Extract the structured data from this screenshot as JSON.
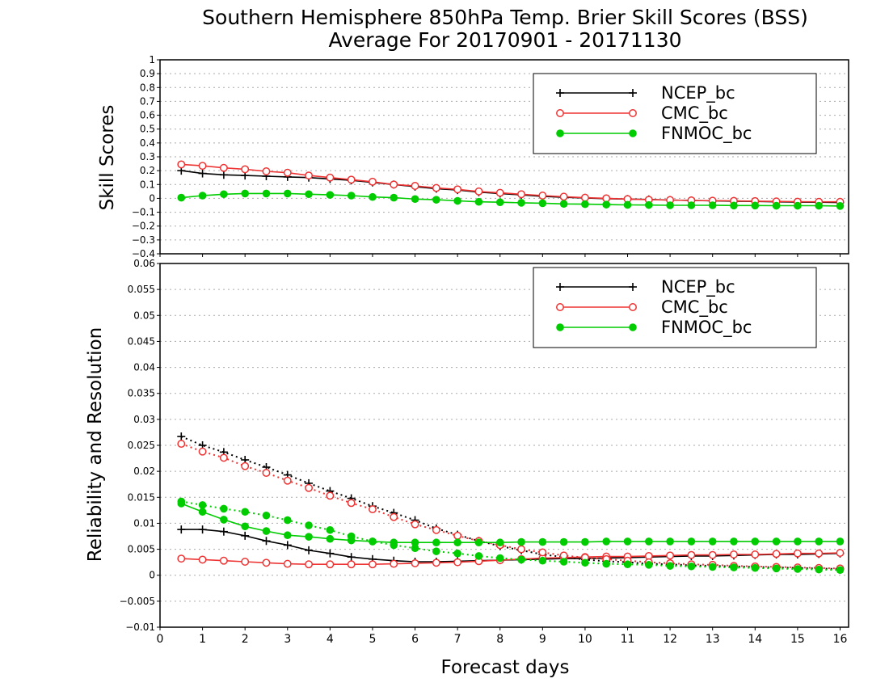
{
  "titles": {
    "line1": "Southern Hemisphere 850hPa Temp. Brier Skill Scores (BSS)",
    "line2": "Average For 20170901 - 20171130"
  },
  "xlabel": "Forecast days",
  "colors": {
    "NCEP_bc": "#000000",
    "CMC_bc": "#ee3333",
    "FNMOC_bc": "#00cc00",
    "grid": "#aaaaaa"
  },
  "chart_data": [
    {
      "type": "line",
      "panel": "top",
      "ylabel": "Skill Scores",
      "xlim": [
        0,
        16.2
      ],
      "ylim": [
        -0.4,
        1
      ],
      "xticks": [
        0,
        1,
        2,
        3,
        4,
        5,
        6,
        7,
        8,
        9,
        10,
        11,
        12,
        13,
        14,
        15,
        16
      ],
      "yticks": [
        1,
        0.9,
        0.8,
        0.7,
        0.6,
        0.5,
        0.4,
        0.3,
        0.2,
        0.1,
        0,
        -0.1,
        -0.2,
        -0.3,
        -0.4
      ],
      "grid": true,
      "legend": {
        "position": "top-right",
        "entries": [
          "NCEP_bc",
          "CMC_bc",
          "FNMOC_bc"
        ]
      },
      "x": [
        0.5,
        1,
        1.5,
        2,
        2.5,
        3,
        3.5,
        4,
        4.5,
        5,
        5.5,
        6,
        6.5,
        7,
        7.5,
        8,
        8.5,
        9,
        9.5,
        10,
        10.5,
        11,
        11.5,
        12,
        12.5,
        13,
        13.5,
        14,
        14.5,
        15,
        15.5,
        16
      ],
      "series": [
        {
          "name": "NCEP_bc",
          "style": "solid",
          "marker": "plus",
          "values": [
            0.2,
            0.18,
            0.17,
            0.165,
            0.16,
            0.155,
            0.15,
            0.14,
            0.13,
            0.115,
            0.1,
            0.085,
            0.07,
            0.06,
            0.045,
            0.035,
            0.025,
            0.015,
            0.008,
            0.003,
            -0.002,
            -0.005,
            -0.008,
            -0.012,
            -0.015,
            -0.018,
            -0.02,
            -0.022,
            -0.025,
            -0.027,
            -0.028,
            -0.03
          ]
        },
        {
          "name": "CMC_bc",
          "style": "solid",
          "marker": "open-circle",
          "values": [
            0.245,
            0.235,
            0.22,
            0.21,
            0.195,
            0.185,
            0.165,
            0.15,
            0.135,
            0.12,
            0.1,
            0.09,
            0.075,
            0.065,
            0.05,
            0.04,
            0.03,
            0.02,
            0.012,
            0.005,
            0,
            -0.005,
            -0.01,
            -0.012,
            -0.015,
            -0.017,
            -0.018,
            -0.02,
            -0.022,
            -0.024,
            -0.025,
            -0.025
          ]
        },
        {
          "name": "FNMOC_bc",
          "style": "solid",
          "marker": "filled-circle",
          "values": [
            0.005,
            0.02,
            0.03,
            0.035,
            0.035,
            0.035,
            0.03,
            0.025,
            0.02,
            0.01,
            0.005,
            -0.005,
            -0.01,
            -0.018,
            -0.025,
            -0.028,
            -0.032,
            -0.035,
            -0.04,
            -0.042,
            -0.045,
            -0.047,
            -0.048,
            -0.05,
            -0.05,
            -0.05,
            -0.052,
            -0.052,
            -0.053,
            -0.053,
            -0.053,
            -0.055
          ]
        }
      ]
    },
    {
      "type": "line",
      "panel": "bottom",
      "ylabel": "Reliability and Resolution",
      "xlim": [
        0,
        16.2
      ],
      "ylim": [
        -0.01,
        0.06
      ],
      "xticks": [
        0,
        1,
        2,
        3,
        4,
        5,
        6,
        7,
        8,
        9,
        10,
        11,
        12,
        13,
        14,
        15,
        16
      ],
      "yticks": [
        0.06,
        0.055,
        0.05,
        0.045,
        0.04,
        0.035,
        0.03,
        0.025,
        0.02,
        0.015,
        0.01,
        0.005,
        0,
        -0.005,
        -0.01
      ],
      "grid": true,
      "legend": {
        "position": "top-right",
        "entries": [
          "NCEP_bc",
          "CMC_bc",
          "FNMOC_bc"
        ]
      },
      "x": [
        0.5,
        1,
        1.5,
        2,
        2.5,
        3,
        3.5,
        4,
        4.5,
        5,
        5.5,
        6,
        6.5,
        7,
        7.5,
        8,
        8.5,
        9,
        9.5,
        10,
        10.5,
        11,
        11.5,
        12,
        12.5,
        13,
        13.5,
        14,
        14.5,
        15,
        15.5,
        16
      ],
      "series": [
        {
          "name": "NCEP_bc",
          "metric": "reliability",
          "style": "solid",
          "marker": "plus",
          "values": [
            0.0088,
            0.0088,
            0.0084,
            0.0076,
            0.0066,
            0.0058,
            0.0048,
            0.0042,
            0.0035,
            0.0031,
            0.0028,
            0.0026,
            0.0026,
            0.0027,
            0.0028,
            0.0029,
            0.003,
            0.0031,
            0.0032,
            0.0032,
            0.0033,
            0.0034,
            0.0035,
            0.0036,
            0.0037,
            0.0037,
            0.0038,
            0.0039,
            0.004,
            0.004,
            0.0041,
            0.0042
          ]
        },
        {
          "name": "NCEP_bc",
          "metric": "resolution",
          "style": "dotted",
          "marker": "plus",
          "values": [
            0.0267,
            0.025,
            0.0237,
            0.0222,
            0.0208,
            0.0193,
            0.0177,
            0.0162,
            0.0148,
            0.0133,
            0.012,
            0.0106,
            0.009,
            0.0078,
            0.0066,
            0.0056,
            0.0048,
            0.004,
            0.0035,
            0.003,
            0.0027,
            0.0025,
            0.0022,
            0.0021,
            0.0019,
            0.0018,
            0.0017,
            0.0016,
            0.0015,
            0.0014,
            0.0013,
            0.0012
          ]
        },
        {
          "name": "CMC_bc",
          "metric": "reliability",
          "style": "solid",
          "marker": "open-circle",
          "values": [
            0.0032,
            0.003,
            0.0028,
            0.0026,
            0.0024,
            0.0022,
            0.0021,
            0.0021,
            0.0021,
            0.0021,
            0.0022,
            0.0023,
            0.0024,
            0.0025,
            0.0027,
            0.0029,
            0.0031,
            0.0033,
            0.0034,
            0.0035,
            0.0036,
            0.0036,
            0.0037,
            0.0038,
            0.0039,
            0.0039,
            0.004,
            0.004,
            0.0041,
            0.0042,
            0.0042,
            0.0043
          ]
        },
        {
          "name": "CMC_bc",
          "metric": "resolution",
          "style": "dotted",
          "marker": "open-circle",
          "values": [
            0.0253,
            0.0238,
            0.0226,
            0.021,
            0.0197,
            0.0182,
            0.0168,
            0.0153,
            0.0139,
            0.0127,
            0.0112,
            0.0098,
            0.0087,
            0.0076,
            0.0066,
            0.0058,
            0.005,
            0.0044,
            0.0038,
            0.0034,
            0.0031,
            0.0028,
            0.0025,
            0.0023,
            0.0021,
            0.002,
            0.0018,
            0.0017,
            0.0016,
            0.0015,
            0.0014,
            0.0013
          ]
        },
        {
          "name": "FNMOC_bc",
          "metric": "reliability",
          "style": "solid",
          "marker": "filled-circle",
          "values": [
            0.0138,
            0.0122,
            0.0107,
            0.0094,
            0.0085,
            0.0077,
            0.0074,
            0.007,
            0.0067,
            0.0065,
            0.0063,
            0.0063,
            0.0063,
            0.0063,
            0.0063,
            0.0063,
            0.0064,
            0.0064,
            0.0064,
            0.0064,
            0.0065,
            0.0065,
            0.0065,
            0.0065,
            0.0065,
            0.0065,
            0.0065,
            0.0065,
            0.0065,
            0.0065,
            0.0065,
            0.0065
          ]
        },
        {
          "name": "FNMOC_bc",
          "metric": "resolution",
          "style": "dotted",
          "marker": "filled-circle",
          "values": [
            0.0142,
            0.0135,
            0.0128,
            0.0122,
            0.0115,
            0.0106,
            0.0096,
            0.0087,
            0.0075,
            0.0065,
            0.0058,
            0.0052,
            0.0046,
            0.0042,
            0.0037,
            0.0033,
            0.003,
            0.0028,
            0.0026,
            0.0024,
            0.0022,
            0.0021,
            0.002,
            0.0018,
            0.0017,
            0.0016,
            0.0015,
            0.0014,
            0.0013,
            0.0012,
            0.0011,
            0.001
          ]
        }
      ]
    }
  ]
}
